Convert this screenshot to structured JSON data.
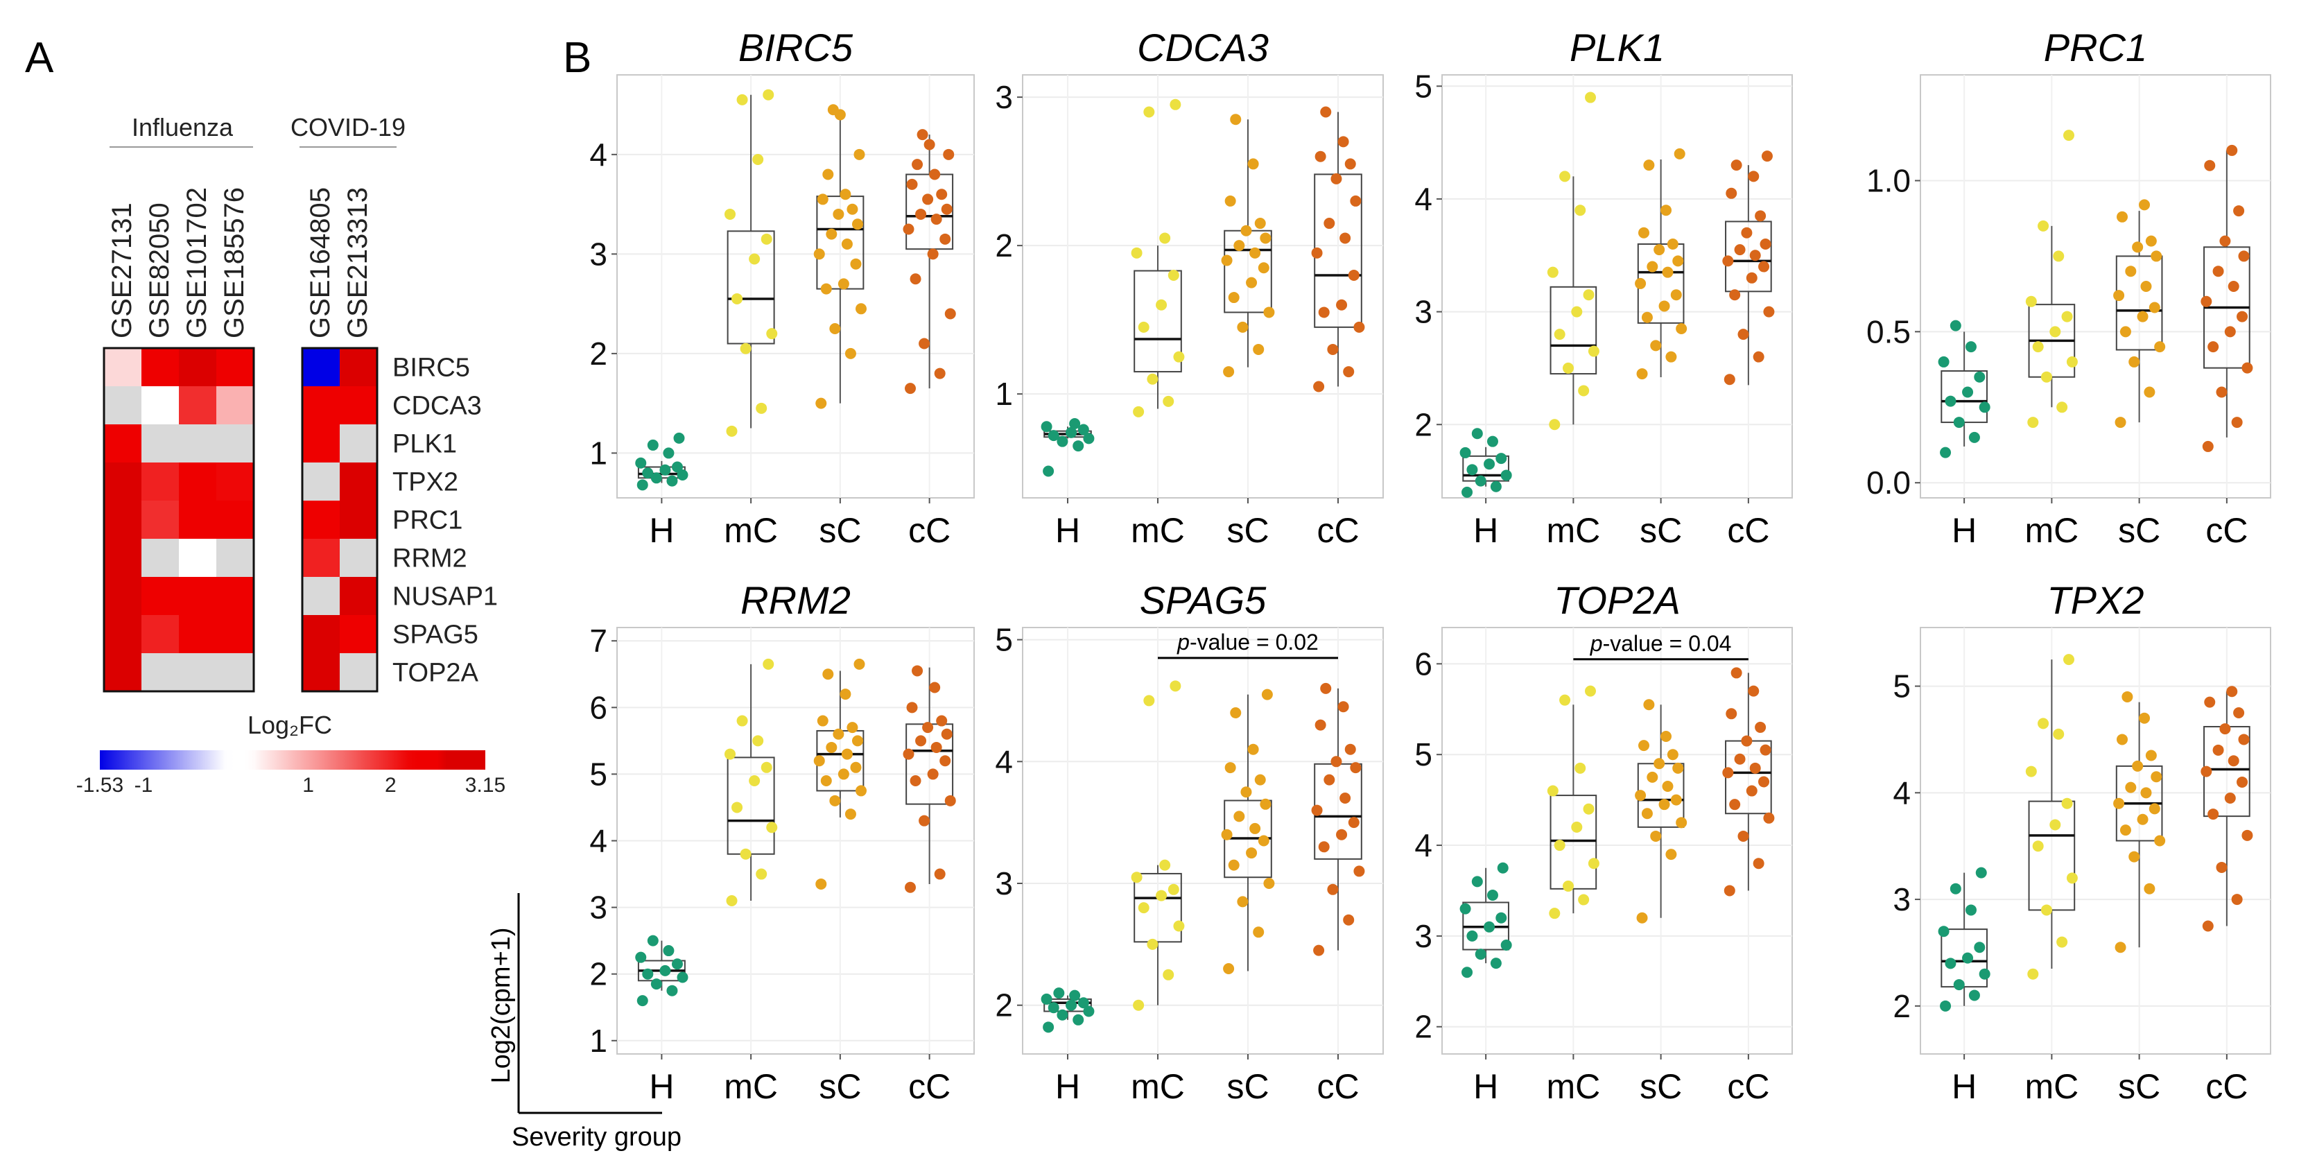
{
  "panel_labels": {
    "a": "A",
    "b": "B"
  },
  "colors": {
    "H": "#1a9a72",
    "mC": "#ece040",
    "sC": "#e7a21c",
    "cC": "#d8661a",
    "heat_low": "#0000e6",
    "heat_mid": "#ffffff",
    "heat_high": "#ee0000",
    "heat_na": "#d9d9d9"
  },
  "heatmap": {
    "group_labels": [
      "Influenza",
      "COVID-19"
    ],
    "datasets": [
      "GSE27131",
      "GSE82050",
      "GSE101702",
      "GSE185576",
      "GSE164805",
      "GSE213313"
    ],
    "genes": [
      "BIRC5",
      "CDCA3",
      "PLK1",
      "TPX2",
      "PRC1",
      "RRM2",
      "NUSAP1",
      "SPAG5",
      "TOP2A"
    ],
    "values": [
      [
        0.6,
        2.6,
        2.7,
        2.3,
        -1.53,
        3.15
      ],
      [
        null,
        0.2,
        1.9,
        0.9,
        2.3,
        2.4
      ],
      [
        2.6,
        null,
        null,
        null,
        2.3,
        null
      ],
      [
        2.8,
        2.0,
        2.4,
        2.2,
        null,
        2.8
      ],
      [
        2.9,
        1.9,
        2.3,
        2.4,
        2.6,
        2.7
      ],
      [
        2.9,
        null,
        0.2,
        null,
        2.0,
        null
      ],
      [
        2.7,
        2.4,
        2.3,
        2.4,
        null,
        2.8
      ],
      [
        2.7,
        2.0,
        2.3,
        2.3,
        2.7,
        2.5
      ],
      [
        2.9,
        null,
        null,
        null,
        2.7,
        null
      ]
    ],
    "legend_title": "Log₂FC",
    "legend_ticks": [
      {
        "label": "-1.53",
        "value": -1.53
      },
      {
        "label": "-1",
        "value": -1
      },
      {
        "label": "1",
        "value": 1
      },
      {
        "label": "2",
        "value": 2
      },
      {
        "label": "3.15",
        "value": 3.15
      }
    ],
    "range": [
      -1.53,
      3.15
    ]
  },
  "chart_data": {
    "type": "boxplot",
    "xlabel": "Severity group",
    "ylabel": "Log2(cpm+1)",
    "categories": [
      "H",
      "mC",
      "sC",
      "cC"
    ],
    "panels": [
      {
        "gene": "BIRC5",
        "ylim": [
          0.55,
          4.8
        ],
        "yticks": [
          1,
          2,
          3,
          4
        ],
        "ytick_labels": [
          "1",
          "2",
          "3",
          "4"
        ],
        "boxes": [
          {
            "group": "H",
            "min": 0.7,
            "q1": 0.75,
            "median": 0.79,
            "q3": 0.86,
            "max": 0.92
          },
          {
            "group": "mC",
            "min": 1.25,
            "q1": 2.1,
            "median": 2.55,
            "q3": 3.23,
            "max": 4.6
          },
          {
            "group": "sC",
            "min": 1.5,
            "q1": 2.65,
            "median": 3.25,
            "q3": 3.58,
            "max": 4.45
          },
          {
            "group": "cC",
            "min": 1.65,
            "q1": 3.05,
            "median": 3.38,
            "q3": 3.8,
            "max": 4.2
          }
        ],
        "points": [
          [
            0.68,
            0.72,
            0.75,
            0.78,
            0.8,
            0.83,
            0.86,
            0.9,
            1.0,
            1.08,
            1.15
          ],
          [
            1.22,
            1.45,
            2.05,
            2.2,
            2.55,
            2.95,
            3.15,
            3.4,
            3.95,
            4.55,
            4.6
          ],
          [
            1.5,
            2.0,
            2.25,
            2.45,
            2.65,
            2.7,
            2.9,
            3.0,
            3.1,
            3.2,
            3.3,
            3.4,
            3.45,
            3.55,
            3.6,
            3.8,
            4.0,
            4.4,
            4.45
          ],
          [
            1.65,
            1.8,
            2.1,
            2.4,
            2.75,
            3.0,
            3.15,
            3.25,
            3.35,
            3.4,
            3.45,
            3.55,
            3.6,
            3.7,
            3.8,
            3.9,
            4.0,
            4.1,
            4.2
          ]
        ],
        "pvalue": null
      },
      {
        "gene": "CDCA3",
        "ylim": [
          0.3,
          3.15
        ],
        "yticks": [
          1,
          2,
          3
        ],
        "ytick_labels": [
          "1",
          "2",
          "3"
        ],
        "boxes": [
          {
            "group": "H",
            "min": 0.7,
            "q1": 0.71,
            "median": 0.73,
            "q3": 0.75,
            "max": 0.78
          },
          {
            "group": "mC",
            "min": 0.9,
            "q1": 1.15,
            "median": 1.37,
            "q3": 1.83,
            "max": 2.0
          },
          {
            "group": "sC",
            "min": 1.18,
            "q1": 1.55,
            "median": 1.97,
            "q3": 2.1,
            "max": 2.85
          },
          {
            "group": "cC",
            "min": 1.05,
            "q1": 1.45,
            "median": 1.8,
            "q3": 2.48,
            "max": 2.9
          }
        ],
        "points": [
          [
            0.48,
            0.65,
            0.68,
            0.7,
            0.72,
            0.74,
            0.76,
            0.78,
            0.8
          ],
          [
            0.88,
            0.95,
            1.1,
            1.25,
            1.45,
            1.6,
            1.8,
            1.95,
            2.05,
            2.9,
            2.95
          ],
          [
            1.15,
            1.3,
            1.45,
            1.55,
            1.65,
            1.75,
            1.85,
            1.9,
            1.95,
            2.0,
            2.05,
            2.1,
            2.15,
            2.3,
            2.55,
            2.85
          ],
          [
            1.05,
            1.15,
            1.3,
            1.45,
            1.55,
            1.6,
            1.8,
            1.95,
            2.05,
            2.15,
            2.3,
            2.45,
            2.55,
            2.6,
            2.7,
            2.9
          ]
        ],
        "pvalue": null
      },
      {
        "gene": "PLK1",
        "ylim": [
          1.35,
          5.1
        ],
        "yticks": [
          2,
          3,
          4,
          5
        ],
        "ytick_labels": [
          "2",
          "3",
          "4",
          "5"
        ],
        "boxes": [
          {
            "group": "H",
            "min": 1.45,
            "q1": 1.5,
            "median": 1.55,
            "q3": 1.72,
            "max": 1.8
          },
          {
            "group": "mC",
            "min": 2.0,
            "q1": 2.45,
            "median": 2.7,
            "q3": 3.22,
            "max": 4.2
          },
          {
            "group": "sC",
            "min": 2.42,
            "q1": 2.9,
            "median": 3.35,
            "q3": 3.6,
            "max": 4.35
          },
          {
            "group": "cC",
            "min": 2.35,
            "q1": 3.18,
            "median": 3.45,
            "q3": 3.8,
            "max": 4.3
          }
        ],
        "points": [
          [
            1.4,
            1.45,
            1.5,
            1.55,
            1.6,
            1.65,
            1.7,
            1.75,
            1.85,
            1.92
          ],
          [
            2.0,
            2.3,
            2.5,
            2.65,
            2.8,
            3.0,
            3.15,
            3.35,
            3.9,
            4.2,
            4.9
          ],
          [
            2.45,
            2.6,
            2.7,
            2.85,
            2.95,
            3.05,
            3.15,
            3.25,
            3.35,
            3.4,
            3.45,
            3.55,
            3.6,
            3.7,
            3.9,
            4.3,
            4.4
          ],
          [
            2.4,
            2.6,
            2.8,
            3.0,
            3.15,
            3.3,
            3.4,
            3.45,
            3.5,
            3.55,
            3.6,
            3.7,
            3.85,
            4.05,
            4.2,
            4.3,
            4.38
          ]
        ],
        "pvalue": null
      },
      {
        "gene": "PRC1",
        "ylim": [
          -0.05,
          1.35
        ],
        "yticks": [
          0.0,
          0.5,
          1.0
        ],
        "ytick_labels": [
          "0.0",
          "0.5",
          "1.0"
        ],
        "boxes": [
          {
            "group": "H",
            "min": 0.12,
            "q1": 0.2,
            "median": 0.27,
            "q3": 0.37,
            "max": 0.5
          },
          {
            "group": "mC",
            "min": 0.25,
            "q1": 0.35,
            "median": 0.47,
            "q3": 0.59,
            "max": 0.85
          },
          {
            "group": "sC",
            "min": 0.2,
            "q1": 0.44,
            "median": 0.57,
            "q3": 0.75,
            "max": 0.9
          },
          {
            "group": "cC",
            "min": 0.15,
            "q1": 0.38,
            "median": 0.58,
            "q3": 0.78,
            "max": 1.1
          }
        ],
        "points": [
          [
            0.1,
            0.15,
            0.2,
            0.25,
            0.27,
            0.3,
            0.35,
            0.4,
            0.45,
            0.52
          ],
          [
            0.2,
            0.25,
            0.35,
            0.4,
            0.45,
            0.5,
            0.55,
            0.6,
            0.75,
            0.85,
            1.15
          ],
          [
            0.2,
            0.3,
            0.4,
            0.45,
            0.5,
            0.55,
            0.58,
            0.62,
            0.65,
            0.7,
            0.75,
            0.78,
            0.8,
            0.88,
            0.92
          ],
          [
            0.12,
            0.2,
            0.3,
            0.38,
            0.45,
            0.5,
            0.55,
            0.6,
            0.65,
            0.7,
            0.75,
            0.8,
            0.9,
            1.05,
            1.1
          ]
        ],
        "pvalue": null
      },
      {
        "gene": "RRM2",
        "ylim": [
          0.8,
          7.2
        ],
        "yticks": [
          1,
          2,
          3,
          4,
          5,
          6,
          7
        ],
        "ytick_labels": [
          "1",
          "2",
          "3",
          "4",
          "5",
          "6",
          "7"
        ],
        "boxes": [
          {
            "group": "H",
            "min": 1.75,
            "q1": 1.9,
            "median": 2.05,
            "q3": 2.2,
            "max": 2.5
          },
          {
            "group": "mC",
            "min": 3.1,
            "q1": 3.8,
            "median": 4.3,
            "q3": 5.25,
            "max": 6.65
          },
          {
            "group": "sC",
            "min": 4.35,
            "q1": 4.75,
            "median": 5.3,
            "q3": 5.65,
            "max": 6.55
          },
          {
            "group": "cC",
            "min": 3.35,
            "q1": 4.55,
            "median": 5.35,
            "q3": 5.75,
            "max": 6.6
          }
        ],
        "points": [
          [
            1.6,
            1.75,
            1.85,
            1.95,
            2.0,
            2.05,
            2.15,
            2.25,
            2.35,
            2.5
          ],
          [
            3.1,
            3.5,
            3.8,
            4.2,
            4.5,
            4.9,
            5.1,
            5.3,
            5.5,
            5.8,
            6.65
          ],
          [
            3.35,
            4.4,
            4.6,
            4.75,
            4.9,
            5.0,
            5.1,
            5.2,
            5.3,
            5.4,
            5.5,
            5.6,
            5.7,
            5.8,
            6.2,
            6.5,
            6.65
          ],
          [
            3.3,
            3.5,
            4.3,
            4.6,
            4.9,
            5.0,
            5.2,
            5.3,
            5.4,
            5.5,
            5.6,
            5.7,
            5.8,
            6.0,
            6.3,
            6.55
          ]
        ],
        "pvalue": null
      },
      {
        "gene": "SPAG5",
        "ylim": [
          1.6,
          5.1
        ],
        "yticks": [
          2,
          3,
          4,
          5
        ],
        "ytick_labels": [
          "2",
          "3",
          "4",
          "5"
        ],
        "boxes": [
          {
            "group": "H",
            "min": 1.88,
            "q1": 1.95,
            "median": 2.02,
            "q3": 2.05,
            "max": 2.08
          },
          {
            "group": "mC",
            "min": 2.0,
            "q1": 2.52,
            "median": 2.88,
            "q3": 3.08,
            "max": 3.15
          },
          {
            "group": "sC",
            "min": 2.28,
            "q1": 3.05,
            "median": 3.37,
            "q3": 3.68,
            "max": 4.55
          },
          {
            "group": "cC",
            "min": 2.45,
            "q1": 3.2,
            "median": 3.55,
            "q3": 3.98,
            "max": 4.6
          }
        ],
        "points": [
          [
            1.82,
            1.88,
            1.92,
            1.95,
            1.98,
            2.0,
            2.02,
            2.05,
            2.08,
            2.1
          ],
          [
            2.0,
            2.25,
            2.5,
            2.65,
            2.8,
            2.9,
            2.95,
            3.05,
            3.15,
            4.5,
            4.62
          ],
          [
            2.3,
            2.6,
            2.85,
            3.0,
            3.15,
            3.25,
            3.35,
            3.4,
            3.45,
            3.55,
            3.65,
            3.75,
            3.85,
            3.95,
            4.1,
            4.4,
            4.55
          ],
          [
            2.45,
            2.7,
            2.95,
            3.1,
            3.3,
            3.4,
            3.5,
            3.6,
            3.7,
            3.85,
            3.95,
            4.0,
            4.1,
            4.3,
            4.45,
            4.6
          ]
        ],
        "pvalue": {
          "label": "p-value = 0.02",
          "from": "mC",
          "to": "cC",
          "y": 4.85
        }
      },
      {
        "gene": "TOP2A",
        "ylim": [
          1.7,
          6.4
        ],
        "yticks": [
          2,
          3,
          4,
          5,
          6
        ],
        "ytick_labels": [
          "2",
          "3",
          "4",
          "5",
          "6"
        ],
        "boxes": [
          {
            "group": "H",
            "min": 2.7,
            "q1": 2.85,
            "median": 3.1,
            "q3": 3.37,
            "max": 3.75
          },
          {
            "group": "mC",
            "min": 3.25,
            "q1": 3.52,
            "median": 4.05,
            "q3": 4.55,
            "max": 5.55
          },
          {
            "group": "sC",
            "min": 3.2,
            "q1": 4.2,
            "median": 4.5,
            "q3": 4.9,
            "max": 5.55
          },
          {
            "group": "cC",
            "min": 3.5,
            "q1": 4.35,
            "median": 4.8,
            "q3": 5.15,
            "max": 5.9
          }
        ],
        "points": [
          [
            2.6,
            2.7,
            2.8,
            2.9,
            3.0,
            3.1,
            3.2,
            3.3,
            3.45,
            3.6,
            3.75
          ],
          [
            3.25,
            3.4,
            3.55,
            3.8,
            4.0,
            4.2,
            4.4,
            4.6,
            4.85,
            5.6,
            5.7
          ],
          [
            3.2,
            3.9,
            4.1,
            4.25,
            4.35,
            4.45,
            4.5,
            4.55,
            4.65,
            4.75,
            4.85,
            4.9,
            5.0,
            5.1,
            5.2,
            5.55
          ],
          [
            3.5,
            3.8,
            4.1,
            4.3,
            4.45,
            4.6,
            4.7,
            4.8,
            4.85,
            4.95,
            5.05,
            5.15,
            5.3,
            5.45,
            5.7,
            5.9
          ]
        ],
        "pvalue": {
          "label": "p-value = 0.04",
          "from": "mC",
          "to": "cC",
          "y": 6.05
        }
      },
      {
        "gene": "TPX2",
        "ylim": [
          1.55,
          5.55
        ],
        "yticks": [
          2,
          3,
          4,
          5
        ],
        "ytick_labels": [
          "2",
          "3",
          "4",
          "5"
        ],
        "boxes": [
          {
            "group": "H",
            "min": 2.0,
            "q1": 2.18,
            "median": 2.42,
            "q3": 2.72,
            "max": 3.25
          },
          {
            "group": "mC",
            "min": 2.35,
            "q1": 2.9,
            "median": 3.6,
            "q3": 3.92,
            "max": 5.25
          },
          {
            "group": "sC",
            "min": 2.55,
            "q1": 3.55,
            "median": 3.9,
            "q3": 4.25,
            "max": 4.85
          },
          {
            "group": "cC",
            "min": 2.75,
            "q1": 3.78,
            "median": 4.22,
            "q3": 4.62,
            "max": 4.95
          }
        ],
        "points": [
          [
            2.0,
            2.1,
            2.2,
            2.3,
            2.4,
            2.45,
            2.55,
            2.7,
            2.9,
            3.1,
            3.25
          ],
          [
            2.3,
            2.6,
            2.9,
            3.2,
            3.5,
            3.7,
            3.9,
            4.2,
            4.55,
            4.65,
            5.25
          ],
          [
            2.55,
            3.1,
            3.4,
            3.55,
            3.65,
            3.75,
            3.85,
            3.9,
            4.0,
            4.05,
            4.15,
            4.25,
            4.35,
            4.5,
            4.7,
            4.9
          ],
          [
            2.75,
            3.0,
            3.3,
            3.6,
            3.8,
            3.95,
            4.1,
            4.2,
            4.3,
            4.4,
            4.5,
            4.6,
            4.75,
            4.85,
            4.95
          ]
        ],
        "pvalue": null
      }
    ]
  }
}
